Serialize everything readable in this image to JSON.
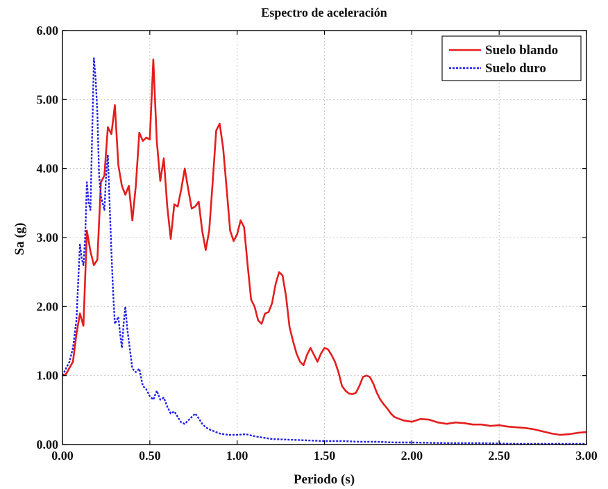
{
  "chart_data": {
    "type": "line",
    "title": "Espectro de aceleración",
    "xlabel": "Periodo (s)",
    "ylabel": "Sa (g)",
    "xlim": [
      0,
      3
    ],
    "ylim": [
      0,
      6
    ],
    "x_ticks": [
      {
        "value": 0,
        "label": "0.00"
      },
      {
        "value": 0.5,
        "label": "0.50"
      },
      {
        "value": 1.0,
        "label": "1.00"
      },
      {
        "value": 1.5,
        "label": "1.50"
      },
      {
        "value": 2.0,
        "label": "2.00"
      },
      {
        "value": 2.5,
        "label": "2.50"
      },
      {
        "value": 3.0,
        "label": "3.00"
      }
    ],
    "y_ticks": [
      {
        "value": 0,
        "label": "0.00"
      },
      {
        "value": 1,
        "label": "1.00"
      },
      {
        "value": 2,
        "label": "2.00"
      },
      {
        "value": 3,
        "label": "3.00"
      },
      {
        "value": 4,
        "label": "4.00"
      },
      {
        "value": 5,
        "label": "5.00"
      },
      {
        "value": 6,
        "label": "6.00"
      }
    ],
    "grid": true,
    "legend_position": "top-right",
    "series": [
      {
        "name": "Suelo blando",
        "color": "#e41e1e",
        "line_style": "solid",
        "x": [
          0.0,
          0.02,
          0.06,
          0.08,
          0.1,
          0.12,
          0.14,
          0.16,
          0.18,
          0.2,
          0.22,
          0.24,
          0.26,
          0.28,
          0.3,
          0.32,
          0.34,
          0.36,
          0.38,
          0.4,
          0.42,
          0.44,
          0.46,
          0.48,
          0.5,
          0.52,
          0.54,
          0.56,
          0.58,
          0.6,
          0.62,
          0.64,
          0.66,
          0.68,
          0.7,
          0.72,
          0.74,
          0.76,
          0.78,
          0.8,
          0.82,
          0.84,
          0.86,
          0.88,
          0.9,
          0.92,
          0.94,
          0.96,
          0.98,
          1.0,
          1.02,
          1.04,
          1.06,
          1.08,
          1.1,
          1.12,
          1.14,
          1.16,
          1.18,
          1.2,
          1.22,
          1.24,
          1.26,
          1.28,
          1.3,
          1.32,
          1.34,
          1.36,
          1.38,
          1.4,
          1.42,
          1.44,
          1.46,
          1.48,
          1.5,
          1.52,
          1.54,
          1.56,
          1.58,
          1.6,
          1.62,
          1.64,
          1.66,
          1.68,
          1.7,
          1.72,
          1.74,
          1.76,
          1.78,
          1.8,
          1.82,
          1.84,
          1.86,
          1.88,
          1.9,
          1.92,
          1.95,
          2.0,
          2.05,
          2.1,
          2.15,
          2.2,
          2.25,
          2.3,
          2.35,
          2.4,
          2.45,
          2.5,
          2.55,
          2.6,
          2.65,
          2.7,
          2.75,
          2.8,
          2.85,
          2.9,
          2.95,
          3.0
        ],
        "values": [
          1.0,
          1.02,
          1.2,
          1.6,
          1.9,
          1.72,
          3.1,
          2.8,
          2.6,
          2.68,
          3.8,
          3.9,
          4.6,
          4.5,
          4.92,
          4.05,
          3.75,
          3.62,
          3.75,
          3.25,
          3.75,
          4.52,
          4.4,
          4.45,
          4.42,
          5.58,
          4.4,
          3.82,
          4.15,
          3.45,
          2.98,
          3.48,
          3.45,
          3.7,
          4.0,
          3.7,
          3.42,
          3.45,
          3.52,
          3.1,
          2.82,
          3.1,
          3.8,
          4.55,
          4.65,
          4.3,
          3.7,
          3.1,
          2.95,
          3.05,
          3.25,
          3.15,
          2.6,
          2.1,
          2.0,
          1.8,
          1.75,
          1.9,
          1.92,
          2.05,
          2.32,
          2.5,
          2.45,
          2.15,
          1.7,
          1.5,
          1.32,
          1.2,
          1.15,
          1.3,
          1.4,
          1.3,
          1.2,
          1.32,
          1.4,
          1.38,
          1.3,
          1.2,
          1.05,
          0.85,
          0.78,
          0.74,
          0.73,
          0.75,
          0.85,
          0.98,
          1.0,
          0.98,
          0.88,
          0.75,
          0.65,
          0.58,
          0.52,
          0.45,
          0.4,
          0.38,
          0.35,
          0.33,
          0.37,
          0.36,
          0.32,
          0.3,
          0.32,
          0.31,
          0.29,
          0.29,
          0.27,
          0.28,
          0.26,
          0.25,
          0.24,
          0.22,
          0.19,
          0.16,
          0.14,
          0.15,
          0.17,
          0.18
        ]
      },
      {
        "name": "Suelo duro",
        "color": "#1f1fe8",
        "line_style": "dashed",
        "x": [
          0.0,
          0.02,
          0.04,
          0.06,
          0.08,
          0.1,
          0.11,
          0.12,
          0.13,
          0.14,
          0.15,
          0.16,
          0.17,
          0.18,
          0.19,
          0.2,
          0.21,
          0.22,
          0.23,
          0.24,
          0.25,
          0.26,
          0.27,
          0.28,
          0.29,
          0.3,
          0.31,
          0.32,
          0.33,
          0.34,
          0.35,
          0.36,
          0.37,
          0.38,
          0.39,
          0.4,
          0.42,
          0.44,
          0.46,
          0.48,
          0.5,
          0.52,
          0.54,
          0.56,
          0.58,
          0.6,
          0.62,
          0.64,
          0.66,
          0.68,
          0.7,
          0.72,
          0.74,
          0.76,
          0.78,
          0.8,
          0.82,
          0.84,
          0.86,
          0.88,
          0.9,
          0.95,
          1.0,
          1.05,
          1.1,
          1.2,
          1.3,
          1.4,
          1.5,
          1.6,
          1.7,
          1.8,
          1.9,
          2.0,
          2.2,
          2.4,
          2.6,
          2.8,
          3.0
        ],
        "values": [
          1.0,
          1.1,
          1.2,
          1.4,
          1.8,
          2.9,
          2.7,
          2.6,
          3.0,
          3.8,
          3.5,
          3.4,
          4.5,
          5.6,
          5.3,
          4.8,
          3.9,
          3.6,
          3.5,
          3.4,
          3.9,
          4.2,
          3.5,
          2.8,
          2.2,
          1.75,
          1.8,
          1.85,
          1.6,
          1.4,
          1.75,
          2.0,
          1.7,
          1.5,
          1.3,
          1.1,
          1.05,
          1.1,
          0.85,
          0.8,
          0.7,
          0.65,
          0.78,
          0.65,
          0.68,
          0.55,
          0.45,
          0.48,
          0.4,
          0.32,
          0.3,
          0.35,
          0.4,
          0.45,
          0.38,
          0.3,
          0.25,
          0.22,
          0.2,
          0.18,
          0.16,
          0.14,
          0.14,
          0.15,
          0.12,
          0.08,
          0.07,
          0.06,
          0.05,
          0.05,
          0.04,
          0.04,
          0.03,
          0.03,
          0.02,
          0.02,
          0.01,
          0.01,
          0.01
        ]
      }
    ]
  }
}
